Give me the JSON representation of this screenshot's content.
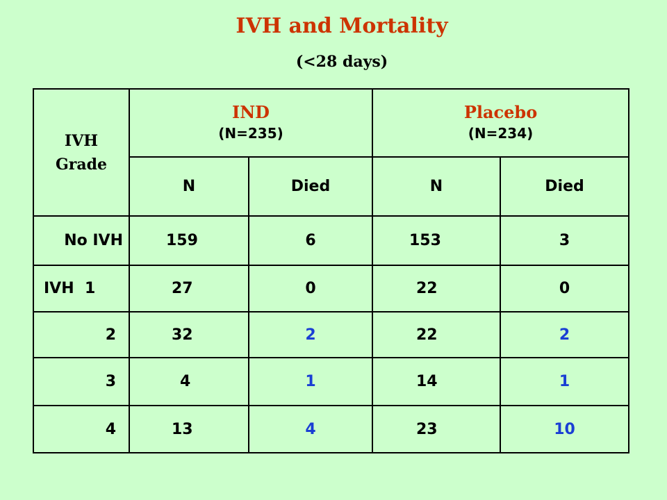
{
  "title": "IVH and Mortality",
  "subtitle": "(<28 days)",
  "table": {
    "grade_header_line1": "IVH",
    "grade_header_line2": "Grade",
    "groups": [
      {
        "name": "IND",
        "n": "(N=235)"
      },
      {
        "name": "Placebo",
        "n": "(N=234)"
      }
    ],
    "subheaders": [
      "N",
      "Died",
      "N",
      "Died"
    ],
    "rows": [
      {
        "label": "No IVH",
        "ind_n": "159",
        "ind_died": "6",
        "plc_n": "153",
        "plc_died": "3"
      },
      {
        "label": "IVH  1",
        "ind_n": "27",
        "ind_died": "0",
        "plc_n": "22",
        "plc_died": "0"
      },
      {
        "label": "2",
        "ind_n": "32",
        "ind_died": "2",
        "plc_n": "22",
        "plc_died": "2"
      },
      {
        "label": "3",
        "ind_n": "4",
        "ind_died": "1",
        "plc_n": "14",
        "plc_died": "1"
      },
      {
        "label": "4",
        "ind_n": "13",
        "ind_died": "4",
        "plc_n": "23",
        "plc_died": "10"
      }
    ]
  },
  "colors": {
    "background": "#ccffcc",
    "heading": "#cc3300",
    "highlight": "#1a3fd4"
  }
}
